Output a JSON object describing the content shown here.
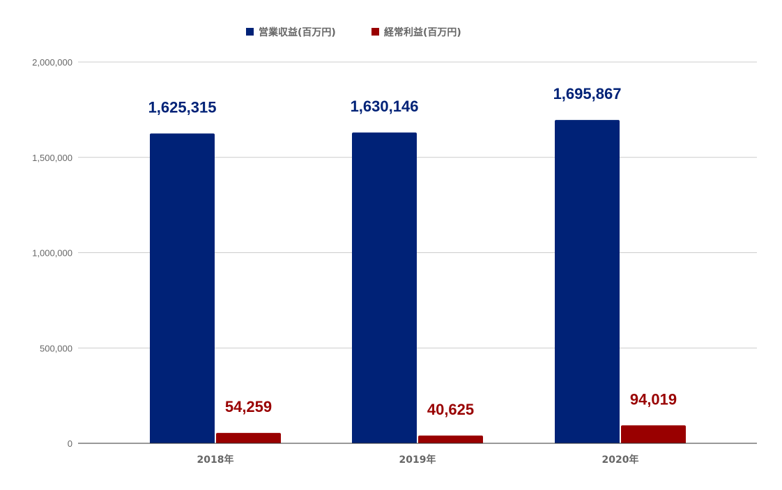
{
  "chart_data": {
    "type": "bar",
    "categories": [
      "2018年",
      "2019年",
      "2020年"
    ],
    "series": [
      {
        "name": "営業収益(百万円)",
        "color": "#002277",
        "values": [
          1625315,
          1630146,
          1695867
        ],
        "labels": [
          "1,625,315",
          "1,630,146",
          "1,695,867"
        ]
      },
      {
        "name": "経常利益(百万円)",
        "color": "#990000",
        "values": [
          54259,
          40625,
          94019
        ],
        "labels": [
          "54,259",
          "40,625",
          "94,019"
        ]
      }
    ],
    "y_ticks": [
      0,
      500000,
      1000000,
      1500000,
      2000000
    ],
    "y_tick_labels": [
      "0",
      "500,000",
      "1,000,000",
      "1,500,000",
      "2,000,000"
    ],
    "ylim": [
      0,
      2000000
    ],
    "grid": true,
    "legend_position": "top-center",
    "title": "",
    "xlabel": "",
    "ylabel": ""
  }
}
